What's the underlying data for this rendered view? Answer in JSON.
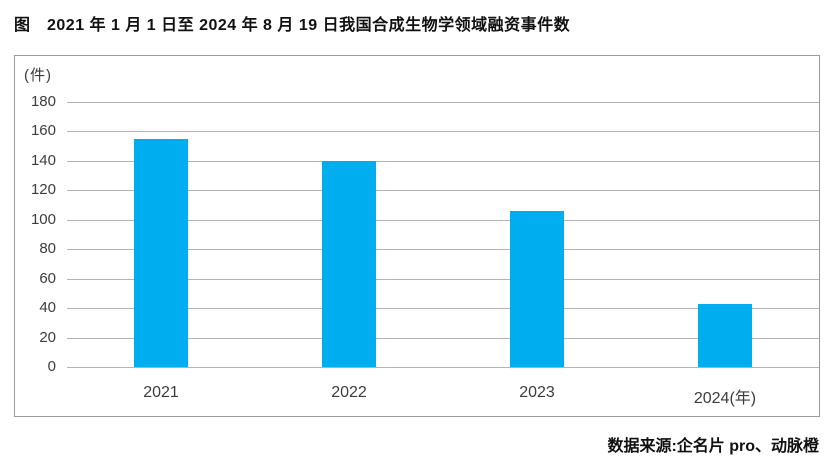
{
  "figure": {
    "title": "图　2021 年 1 月 1 日至 2024 年 8 月 19 日我国合成生物学领域融资事件数",
    "source": "数据来源:企名片 pro、动脉橙"
  },
  "chart_data": {
    "type": "bar",
    "title": "2021 年 1 月 1 日至 2024 年 8 月 19 日我国合成生物学领域融资事件数",
    "categories": [
      "2021",
      "2022",
      "2023",
      "2024"
    ],
    "category_display_labels": [
      "2021",
      "2022",
      "2023",
      "2024(年)"
    ],
    "values": [
      155,
      140,
      106,
      43
    ],
    "xlabel": "年",
    "ylabel": "(件)",
    "ylim": [
      0,
      180
    ],
    "ytick_step": 20,
    "grid": true,
    "legend": "none",
    "bar_color": "#00AEEF",
    "gridline_color": "#b3b3b3"
  }
}
